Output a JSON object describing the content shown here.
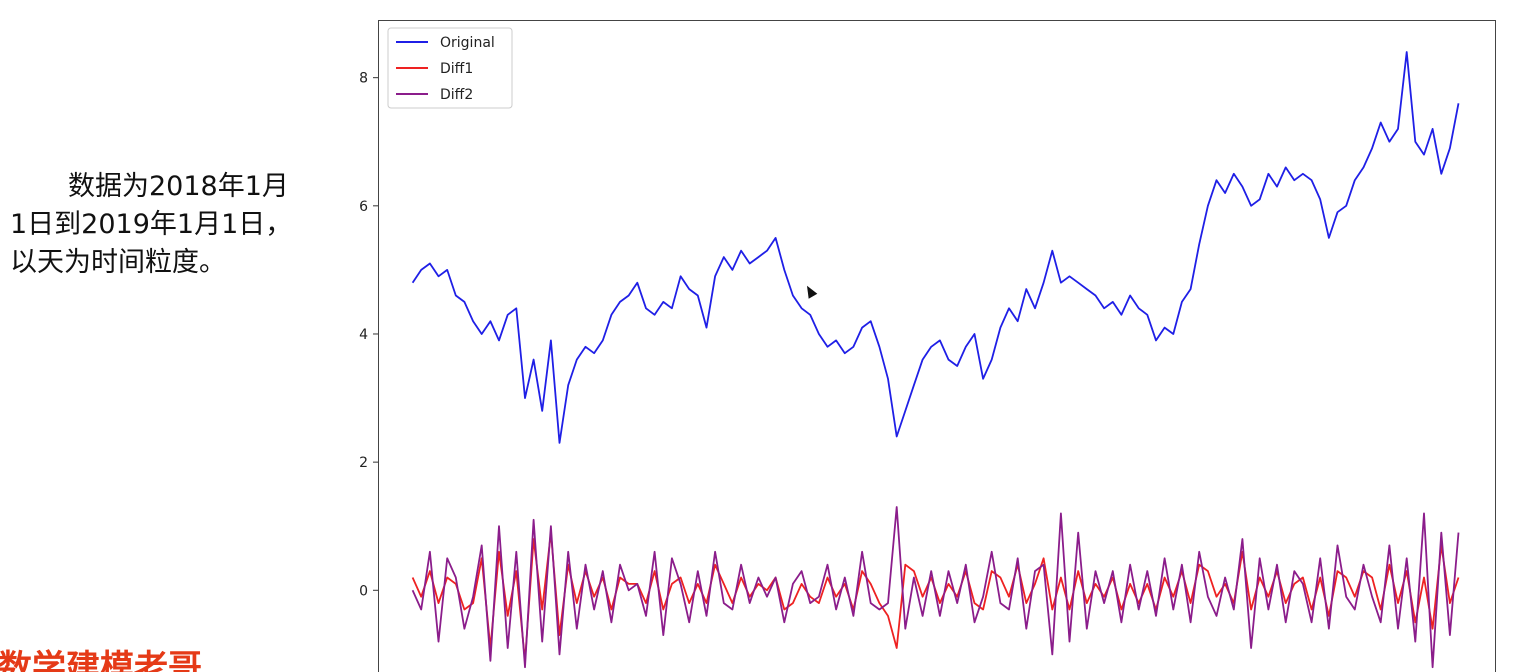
{
  "caption": {
    "lines": [
      "数据为2018年1月",
      "1日到2019年1月1日，",
      "以天为时间粒度。"
    ]
  },
  "watermark": "数学建模老哥",
  "chart_data": {
    "type": "line",
    "x": [
      0,
      3,
      6,
      9,
      12,
      15,
      18,
      21,
      24,
      27,
      30,
      33,
      36,
      39,
      42,
      45,
      48,
      51,
      54,
      57,
      60,
      63,
      66,
      69,
      72,
      75,
      78,
      81,
      84,
      87,
      90,
      93,
      96,
      99,
      102,
      105,
      108,
      111,
      114,
      117,
      120,
      123,
      126,
      129,
      132,
      135,
      138,
      141,
      144,
      147,
      150,
      153,
      156,
      159,
      162,
      165,
      168,
      171,
      174,
      177,
      180,
      183,
      186,
      189,
      192,
      195,
      198,
      201,
      204,
      207,
      210,
      213,
      216,
      219,
      222,
      225,
      228,
      231,
      234,
      237,
      240,
      243,
      246,
      249,
      252,
      255,
      258,
      261,
      264,
      267,
      270,
      273,
      276,
      279,
      282,
      285,
      288,
      291,
      294,
      297,
      300,
      303,
      306,
      309,
      312,
      315,
      318,
      321,
      324,
      327,
      330,
      333,
      336,
      339,
      342,
      345,
      348,
      351,
      354,
      357,
      360,
      363
    ],
    "yticks": [
      0,
      2,
      4,
      6,
      8
    ],
    "ylim": [
      -1.4,
      8.9
    ],
    "xlim": [
      -12,
      376
    ],
    "legend_position": "upper-left",
    "series": [
      {
        "name": "Original",
        "color": "#1f1fe6",
        "values": [
          4.8,
          5.0,
          5.1,
          4.9,
          5.0,
          4.6,
          4.5,
          4.2,
          4.0,
          4.2,
          3.9,
          4.3,
          4.4,
          3.0,
          3.6,
          2.8,
          3.9,
          2.3,
          3.2,
          3.6,
          3.8,
          3.7,
          3.9,
          4.3,
          4.5,
          4.6,
          4.8,
          4.4,
          4.3,
          4.5,
          4.4,
          4.9,
          4.7,
          4.6,
          4.1,
          4.9,
          5.2,
          5.0,
          5.3,
          5.1,
          5.2,
          5.3,
          5.5,
          5.0,
          4.6,
          4.4,
          4.3,
          4.0,
          3.8,
          3.9,
          3.7,
          3.8,
          4.1,
          4.2,
          3.8,
          3.3,
          2.4,
          2.8,
          3.2,
          3.6,
          3.8,
          3.9,
          3.6,
          3.5,
          3.8,
          4.0,
          3.3,
          3.6,
          4.1,
          4.4,
          4.2,
          4.7,
          4.4,
          4.8,
          5.3,
          4.8,
          4.9,
          4.8,
          4.7,
          4.6,
          4.4,
          4.5,
          4.3,
          4.6,
          4.4,
          4.3,
          3.9,
          4.1,
          4.0,
          4.5,
          4.7,
          5.4,
          6.0,
          6.4,
          6.2,
          6.5,
          6.3,
          6.0,
          6.1,
          6.5,
          6.3,
          6.6,
          6.4,
          6.5,
          6.4,
          6.1,
          5.5,
          5.9,
          6.0,
          6.4,
          6.6,
          6.9,
          7.3,
          7.0,
          7.2,
          8.4,
          7.0,
          6.8,
          7.2,
          6.5,
          6.9,
          7.6
        ]
      },
      {
        "name": "Diff1",
        "color": "#ee2222",
        "values": [
          0.2,
          -0.1,
          0.3,
          -0.2,
          0.2,
          0.1,
          -0.3,
          -0.2,
          0.5,
          -0.9,
          0.6,
          -0.4,
          0.3,
          -1.1,
          0.8,
          -0.3,
          0.9,
          -0.7,
          0.4,
          -0.2,
          0.3,
          -0.1,
          0.2,
          -0.3,
          0.2,
          0.1,
          0.1,
          -0.2,
          0.3,
          -0.3,
          0.1,
          0.2,
          -0.2,
          0.1,
          -0.2,
          0.4,
          0.1,
          -0.2,
          0.2,
          -0.1,
          0.1,
          0.0,
          0.2,
          -0.3,
          -0.2,
          0.1,
          -0.1,
          -0.2,
          0.2,
          -0.1,
          0.1,
          -0.3,
          0.3,
          0.1,
          -0.2,
          -0.4,
          -0.9,
          0.4,
          0.3,
          -0.1,
          0.2,
          -0.2,
          0.1,
          -0.1,
          0.3,
          -0.2,
          -0.3,
          0.3,
          0.2,
          -0.1,
          0.4,
          -0.2,
          0.1,
          0.5,
          -0.3,
          0.2,
          -0.3,
          0.3,
          -0.2,
          0.1,
          -0.1,
          0.2,
          -0.3,
          0.1,
          -0.2,
          0.1,
          -0.3,
          0.2,
          -0.1,
          0.3,
          -0.2,
          0.4,
          0.3,
          -0.1,
          0.1,
          -0.2,
          0.6,
          -0.3,
          0.2,
          -0.1,
          0.3,
          -0.2,
          0.1,
          0.2,
          -0.3,
          0.2,
          -0.4,
          0.3,
          0.2,
          -0.1,
          0.3,
          0.2,
          -0.3,
          0.4,
          -0.2,
          0.3,
          -0.5,
          0.2,
          -0.6,
          0.7,
          -0.2,
          0.2
        ]
      },
      {
        "name": "Diff2",
        "color": "#8b1d8b",
        "values": [
          0.0,
          -0.3,
          0.6,
          -0.8,
          0.5,
          0.2,
          -0.6,
          -0.1,
          0.7,
          -1.1,
          1.0,
          -0.9,
          0.6,
          -1.2,
          1.1,
          -0.8,
          1.0,
          -1.0,
          0.6,
          -0.6,
          0.4,
          -0.3,
          0.3,
          -0.5,
          0.4,
          0.0,
          0.1,
          -0.4,
          0.6,
          -0.7,
          0.5,
          0.1,
          -0.5,
          0.3,
          -0.4,
          0.6,
          -0.2,
          -0.3,
          0.4,
          -0.2,
          0.2,
          -0.1,
          0.2,
          -0.5,
          0.1,
          0.3,
          -0.2,
          -0.1,
          0.4,
          -0.3,
          0.2,
          -0.4,
          0.6,
          -0.2,
          -0.3,
          -0.2,
          1.3,
          -0.6,
          0.2,
          -0.4,
          0.3,
          -0.4,
          0.3,
          -0.2,
          0.4,
          -0.5,
          -0.1,
          0.6,
          -0.2,
          -0.3,
          0.5,
          -0.6,
          0.3,
          0.4,
          -1.0,
          1.2,
          -0.8,
          0.9,
          -0.6,
          0.3,
          -0.2,
          0.3,
          -0.5,
          0.4,
          -0.3,
          0.3,
          -0.4,
          0.5,
          -0.3,
          0.4,
          -0.5,
          0.6,
          -0.1,
          -0.4,
          0.2,
          -0.3,
          0.8,
          -0.9,
          0.5,
          -0.3,
          0.4,
          -0.5,
          0.3,
          0.1,
          -0.5,
          0.5,
          -0.6,
          0.7,
          -0.1,
          -0.3,
          0.4,
          -0.1,
          -0.5,
          0.7,
          -0.6,
          0.5,
          -0.8,
          1.2,
          -1.2,
          0.9,
          -0.7,
          0.9
        ]
      }
    ]
  }
}
